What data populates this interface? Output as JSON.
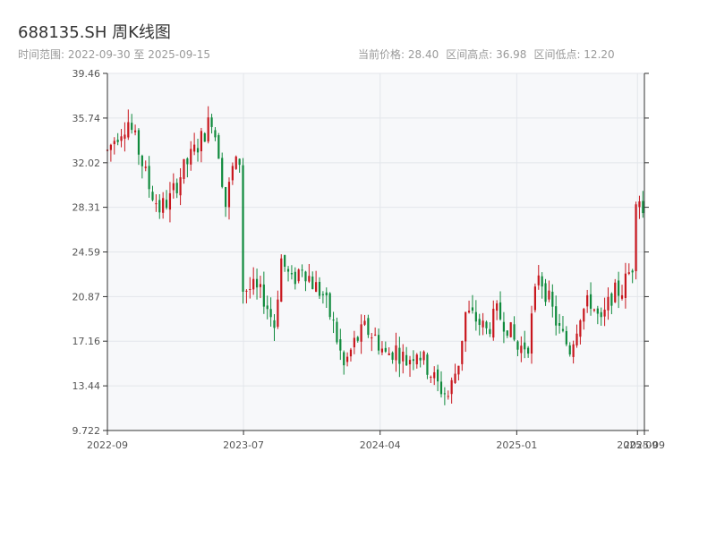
{
  "header": {
    "title": "688135.SH 周K线图",
    "range_label": "时间范围: 2022-09-30 至 2025-09-15",
    "current_price": "当前价格: 28.40",
    "high_label": "区间高点: 36.98",
    "low_label": "区间低点: 12.20"
  },
  "colors": {
    "up": "#c8161d",
    "down": "#0f8a3c",
    "plot_bg": "#f7f8fa",
    "grid": "#e3e6eb",
    "axis": "#333333"
  },
  "chart_data": {
    "type": "candlestick",
    "title": "688135.SH 周K线图",
    "xlabel": "",
    "ylabel": "",
    "grid": true,
    "x_range": [
      "2022-09-30",
      "2025-09-15"
    ],
    "ylim": [
      9.722,
      39.46
    ],
    "y_ticks": [
      "39.46",
      "35.74",
      "32.02",
      "28.31",
      "24.59",
      "20.87",
      "17.16",
      "13.44",
      "9.722"
    ],
    "x_ticks": [
      {
        "date": "2022-09-30",
        "label": "2022-09"
      },
      {
        "date": "2023-07-01",
        "label": "2023-07"
      },
      {
        "date": "2024-04-01",
        "label": "2024-04"
      },
      {
        "date": "2025-01-01",
        "label": "2025-01"
      },
      {
        "date": "2025-09-01",
        "label": "2025-09"
      },
      {
        "date": "2025-09-15",
        "label": "2025-09"
      }
    ],
    "anchors": [
      [
        "2022-09-30",
        33.0
      ],
      [
        "2022-10-21",
        34.5
      ],
      [
        "2022-11-11",
        35.5
      ],
      [
        "2022-12-02",
        33.0
      ],
      [
        "2022-12-23",
        30.0
      ],
      [
        "2023-01-13",
        28.2
      ],
      [
        "2023-02-03",
        29.0
      ],
      [
        "2023-02-24",
        31.0
      ],
      [
        "2023-03-17",
        32.5
      ],
      [
        "2023-04-07",
        34.0
      ],
      [
        "2023-04-28",
        35.8
      ],
      [
        "2023-05-12",
        33.0
      ],
      [
        "2023-05-26",
        28.5
      ],
      [
        "2023-06-09",
        31.5
      ],
      [
        "2023-06-23",
        32.2
      ],
      [
        "2023-06-30",
        21.5
      ],
      [
        "2023-07-21",
        21.5
      ],
      [
        "2023-08-11",
        20.8
      ],
      [
        "2023-09-01",
        18.5
      ],
      [
        "2023-09-15",
        24.0
      ],
      [
        "2023-10-06",
        22.0
      ],
      [
        "2023-10-27",
        23.5
      ],
      [
        "2023-11-17",
        22.0
      ],
      [
        "2023-12-08",
        21.0
      ],
      [
        "2023-12-29",
        18.5
      ],
      [
        "2024-01-19",
        15.0
      ],
      [
        "2024-02-09",
        17.0
      ],
      [
        "2024-03-01",
        18.2
      ],
      [
        "2024-03-22",
        17.5
      ],
      [
        "2024-04-12",
        16.0
      ],
      [
        "2024-05-03",
        16.5
      ],
      [
        "2024-05-24",
        15.5
      ],
      [
        "2024-06-14",
        16.5
      ],
      [
        "2024-07-05",
        15.0
      ],
      [
        "2024-07-26",
        13.5
      ],
      [
        "2024-08-16",
        12.6
      ],
      [
        "2024-09-06",
        15.5
      ],
      [
        "2024-09-20",
        19.5
      ],
      [
        "2024-10-11",
        19.0
      ],
      [
        "2024-11-01",
        18.0
      ],
      [
        "2024-11-22",
        19.5
      ],
      [
        "2024-12-13",
        18.5
      ],
      [
        "2025-01-03",
        16.5
      ],
      [
        "2025-01-24",
        17.0
      ],
      [
        "2025-02-14",
        23.0
      ],
      [
        "2025-03-07",
        20.5
      ],
      [
        "2025-03-28",
        18.0
      ],
      [
        "2025-04-18",
        16.5
      ],
      [
        "2025-05-09",
        19.5
      ],
      [
        "2025-05-30",
        20.5
      ],
      [
        "2025-06-20",
        18.5
      ],
      [
        "2025-07-11",
        21.0
      ],
      [
        "2025-08-01",
        21.5
      ],
      [
        "2025-08-22",
        23.5
      ],
      [
        "2025-09-01",
        32.0
      ],
      [
        "2025-09-08",
        27.0
      ],
      [
        "2025-09-15",
        28.4
      ]
    ]
  }
}
